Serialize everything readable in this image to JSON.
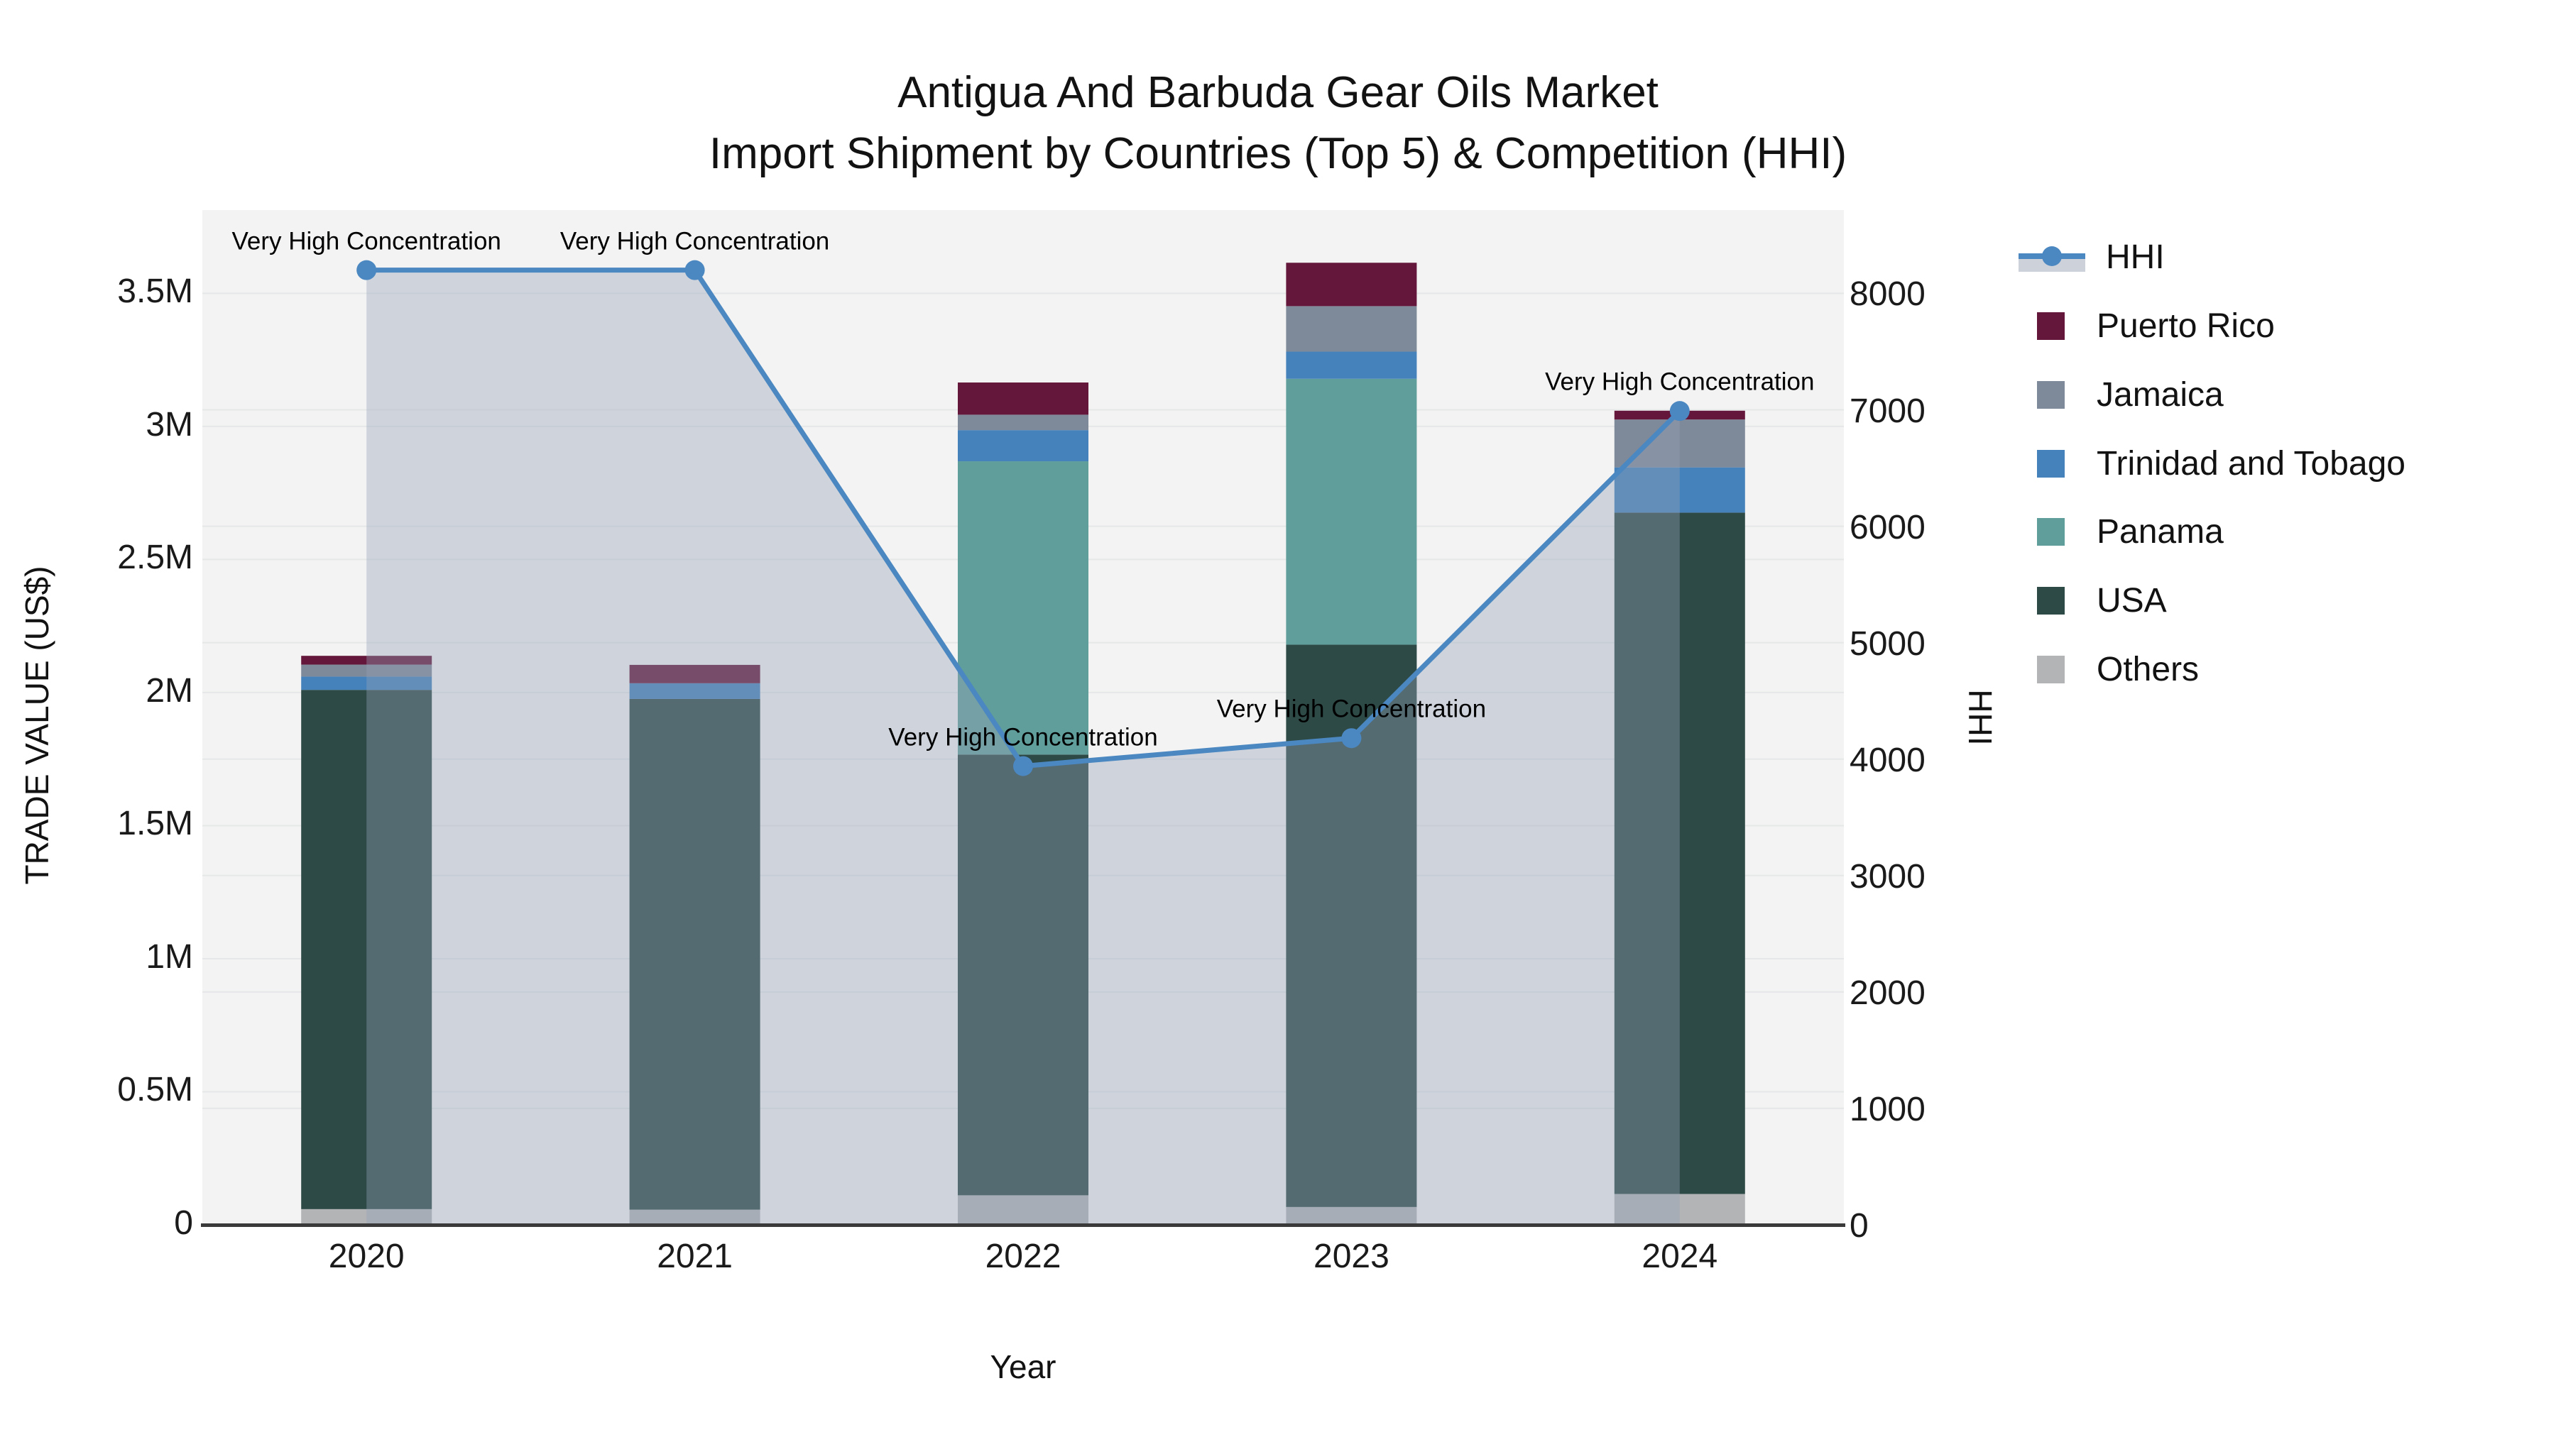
{
  "ui": {
    "title_line1": "Antigua And Barbuda Gear Oils Market",
    "title_line2": "Import Shipment by Countries (Top 5) & Competition (HHI)",
    "left_axis_title": "TRADE VALUE (US$)",
    "right_axis_title": "HHI",
    "x_axis_title": "Year"
  },
  "chart_data": {
    "type": "combo-stacked-bar-line",
    "title": "Antigua And Barbuda Gear Oils Market — Import Shipment by Countries (Top 5) & Competition (HHI)",
    "xlabel": "Year",
    "ylabel_left": "TRADE VALUE (US$)",
    "ylabel_right": "HHI",
    "categories": [
      "2020",
      "2021",
      "2022",
      "2023",
      "2024"
    ],
    "stack_order_bottom_to_top": [
      "Others",
      "USA",
      "Panama",
      "Trinidad and Tobago",
      "Jamaica",
      "Puerto Rico"
    ],
    "series": [
      {
        "name": "Puerto Rico",
        "color": "#64173a",
        "values": [
          33000,
          69000,
          121000,
          163000,
          33000
        ]
      },
      {
        "name": "Jamaica",
        "color": "#7e8a99",
        "values": [
          45000,
          0,
          58000,
          171000,
          180000
        ]
      },
      {
        "name": "Trinidad and Tobago",
        "color": "#4581bb",
        "values": [
          50000,
          59000,
          117000,
          102000,
          170000
        ]
      },
      {
        "name": "Panama",
        "color": "#5f9e9b",
        "values": [
          0,
          0,
          1102000,
          999000,
          0
        ]
      },
      {
        "name": "USA",
        "color": "#2d4a47",
        "values": [
          1951000,
          1919000,
          1656000,
          2113000,
          2560000
        ]
      },
      {
        "name": "Others",
        "color": "#b2b4b6",
        "values": [
          59000,
          57000,
          111000,
          67000,
          116000
        ]
      }
    ],
    "bar_totals": [
      2138000,
      2104000,
      3165000,
      3615000,
      3059000
    ],
    "line_series": {
      "name": "HHI",
      "axis": "right",
      "color": "#4b87c1",
      "area_fill": "rgba(150,162,184,0.38)",
      "values": [
        8200,
        8200,
        3940,
        4180,
        6990
      ]
    },
    "annotations": [
      {
        "category": "2020",
        "text": "Very High Concentration"
      },
      {
        "category": "2021",
        "text": "Very High Concentration"
      },
      {
        "category": "2022",
        "text": "Very High Concentration"
      },
      {
        "category": "2023",
        "text": "Very High Concentration"
      },
      {
        "category": "2024",
        "text": "Very High Concentration"
      }
    ],
    "left_axis": {
      "tick_labels": [
        "0",
        "0.5M",
        "1M",
        "1.5M",
        "2M",
        "2.5M",
        "3M",
        "3.5M"
      ],
      "tick_values": [
        0,
        500000,
        1000000,
        1500000,
        2000000,
        2500000,
        3000000,
        3500000
      ],
      "range": [
        0,
        3813000
      ]
    },
    "right_axis": {
      "tick_labels": [
        "0",
        "1000",
        "2000",
        "3000",
        "4000",
        "5000",
        "6000",
        "7000",
        "8000"
      ],
      "tick_values": [
        0,
        1000,
        2000,
        3000,
        4000,
        5000,
        6000,
        7000,
        8000
      ],
      "range": [
        0,
        8716
      ]
    },
    "legend_position": "right",
    "grid": true,
    "palette": {
      "plot_background": "#f2f3f2",
      "gridline": "#e6e7e8",
      "axis_line": "#3a3a3a",
      "text": "#121212",
      "hhi_legend_band": "#ccd1da"
    }
  }
}
